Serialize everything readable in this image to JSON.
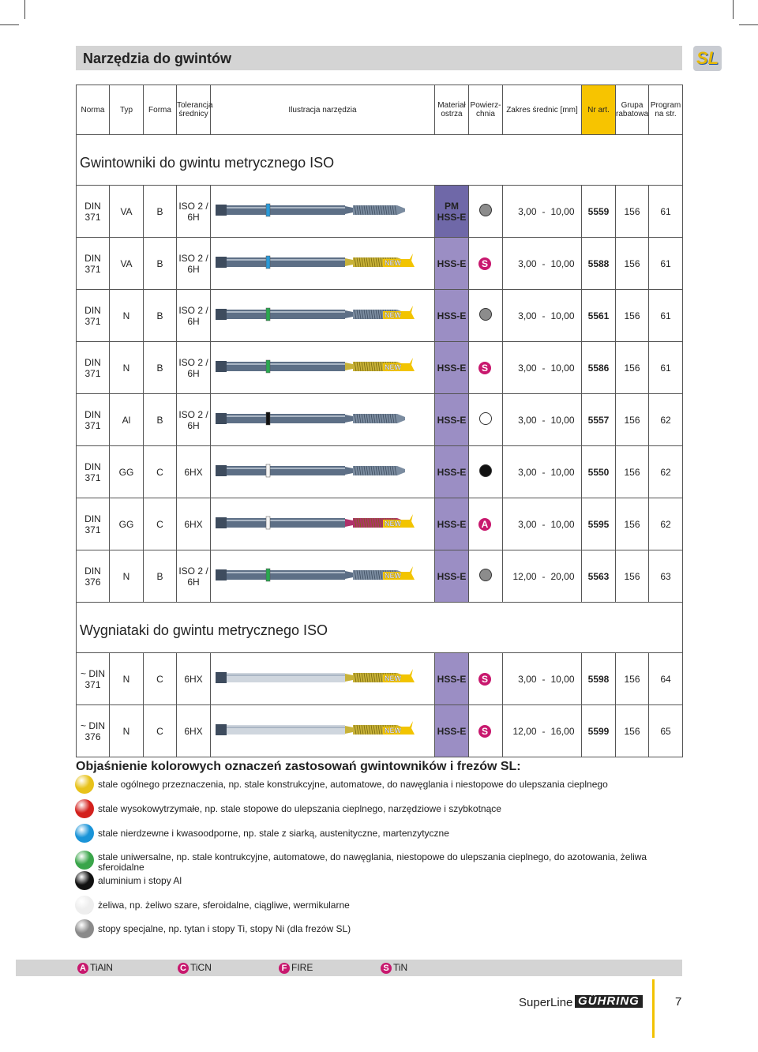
{
  "header": {
    "title": "Narzędzia do gwintów",
    "logo": "SL"
  },
  "table": {
    "columns": [
      "Norma",
      "Typ",
      "Forma",
      "Tolerancja\nśrednicy",
      "Ilustracja narzędzia",
      "Materiał\nostrza",
      "Powierz-\nchnia",
      "Zakres średnic [mm]",
      "Nr art.",
      "Grupa\nrabatowa",
      "Program\nna str."
    ],
    "sections": [
      {
        "title": "Gwintowniki do gwintu metrycznego ISO",
        "rows": [
          {
            "norma": "DIN\n371",
            "typ": "VA",
            "forma": "B",
            "tolerancja": "ISO 2 /\n6H",
            "material": "PM\nHSS-E",
            "material_color": "#6f68a8",
            "surface_color": "#8c8c8c",
            "range_from": "3,00",
            "range_sep": "-",
            "range_to": "10,00",
            "nr": "5559",
            "grupa": "156",
            "program": "61",
            "band_color": "#2a9ad8",
            "tool_color": "#5d6f86"
          },
          {
            "norma": "DIN\n371",
            "typ": "VA",
            "forma": "B",
            "tolerancja": "ISO 2 /\n6H",
            "badge": "NEW",
            "material": "HSS-E",
            "surface": "S",
            "range_from": "3,00",
            "range_sep": "-",
            "range_to": "10,00",
            "nr": "5588",
            "grupa": "156",
            "program": "61",
            "band_color": "#2a9ad8",
            "tool_color": "#c8b238"
          },
          {
            "norma": "DIN\n371",
            "typ": "N",
            "forma": "B",
            "tolerancja": "ISO 2 /\n6H",
            "badge": "NEW",
            "material": "HSS-E",
            "surface_color": "#8c8c8c",
            "range_from": "3,00",
            "range_sep": "-",
            "range_to": "10,00",
            "nr": "5561",
            "grupa": "156",
            "program": "61",
            "band_color": "#2aa850",
            "tool_color": "#5d6f86"
          },
          {
            "norma": "DIN\n371",
            "typ": "N",
            "forma": "B",
            "tolerancja": "ISO 2 /\n6H",
            "badge": "NEW",
            "material": "HSS-E",
            "surface": "S",
            "range_from": "3,00",
            "range_sep": "-",
            "range_to": "10,00",
            "nr": "5586",
            "grupa": "156",
            "program": "61",
            "band_color": "#2aa850",
            "tool_color": "#c8b238"
          },
          {
            "norma": "DIN\n371",
            "typ": "Al",
            "forma": "B",
            "tolerancja": "ISO 2 /\n6H",
            "material": "HSS-E",
            "surface_color": "#ffffff",
            "range_from": "3,00",
            "range_sep": "-",
            "range_to": "10,00",
            "nr": "5557",
            "grupa": "156",
            "program": "62",
            "band_color": "#111111",
            "tool_color": "#5d6f86"
          },
          {
            "norma": "DIN\n371",
            "typ": "GG",
            "forma": "C",
            "tolerancja": "6HX",
            "material": "HSS-E",
            "surface_color": "#111111",
            "range_from": "3,00",
            "range_sep": "-",
            "range_to": "10,00",
            "nr": "5550",
            "grupa": "156",
            "program": "62",
            "band_color": "#f4f4f4",
            "tool_color": "#5d6f86"
          },
          {
            "norma": "DIN\n371",
            "typ": "GG",
            "forma": "C",
            "tolerancja": "6HX",
            "badge": "NEW",
            "material": "HSS-E",
            "surface": "A",
            "range_from": "3,00",
            "range_sep": "-",
            "range_to": "10,00",
            "nr": "5595",
            "grupa": "156",
            "program": "62",
            "band_color": "#f4f4f4",
            "tool_color": "#b0306a"
          },
          {
            "norma": "DIN\n376",
            "typ": "N",
            "forma": "B",
            "tolerancja": "ISO 2 /\n6H",
            "badge": "NEW",
            "material": "HSS-E",
            "surface_color": "#8c8c8c",
            "range_from": "12,00",
            "range_sep": "-",
            "range_to": "20,00",
            "nr": "5563",
            "grupa": "156",
            "program": "63",
            "band_color": "#2aa850",
            "tool_color": "#5d6f86"
          }
        ]
      },
      {
        "title": "Wygniataki do gwintu metrycznego ISO",
        "rows": [
          {
            "norma": "~ DIN\n371",
            "typ": "N",
            "forma": "C",
            "tolerancja": "6HX",
            "badge": "NEW",
            "material": "HSS-E",
            "surface": "S",
            "range_from": "3,00",
            "range_sep": "-",
            "range_to": "10,00",
            "nr": "5598",
            "grupa": "156",
            "program": "64",
            "tool_color": "#c8b238"
          },
          {
            "norma": "~ DIN\n376",
            "typ": "N",
            "forma": "C",
            "tolerancja": "6HX",
            "badge": "NEW",
            "material": "HSS-E",
            "surface": "S",
            "range_from": "12,00",
            "range_sep": "-",
            "range_to": "16,00",
            "nr": "5599",
            "grupa": "156",
            "program": "65",
            "tool_color": "#c8b238"
          }
        ]
      }
    ]
  },
  "legend": {
    "title": "Objaśnienie kolorowych oznaczeń zastosowań gwintowników i frezów SL:",
    "items": [
      {
        "color": "#e8c21a",
        "text": "stale ogólnego przeznaczenia, np. stale konstrukcyjne, automatowe, do nawęglania i niestopowe do ulepszania cieplnego"
      },
      {
        "color": "#d3211d",
        "text": "stale wysokowytrzymałe, np. stale stopowe do ulepszania cieplnego, narzędziowe i szybkotnące"
      },
      {
        "color": "#1a94d8",
        "text": "stale nierdzewne i kwasoodporne, np. stale z siarką, austenityczne, martenzytyczne"
      },
      {
        "color": "#3aa54a",
        "text": "stale uniwersalne,  np. stale kontrukcyjne, automatowe, do nawęglania, niestopowe do ulepszania cieplnego, do azotowania, żeliwa sferoidalne"
      },
      {
        "color": "#111111",
        "text": "aluminium i stopy Al"
      },
      {
        "color": "#eeeeee",
        "text": "żeliwa, np. żeliwo szare, sferoidalne, ciągliwe, wermikularne"
      },
      {
        "color": "#8a8a8a",
        "text": "stopy specjalne, np. tytan i stopy Ti, stopy Ni (dla frezów SL)"
      }
    ]
  },
  "coatings": [
    {
      "letter": "A",
      "name": "TiAlN"
    },
    {
      "letter": "C",
      "name": "TiCN"
    },
    {
      "letter": "F",
      "name": "FIRE"
    },
    {
      "letter": "S",
      "name": "TiN"
    }
  ],
  "footer": {
    "brand": "SuperLine",
    "logo": "GÜHRING",
    "page": "7"
  }
}
